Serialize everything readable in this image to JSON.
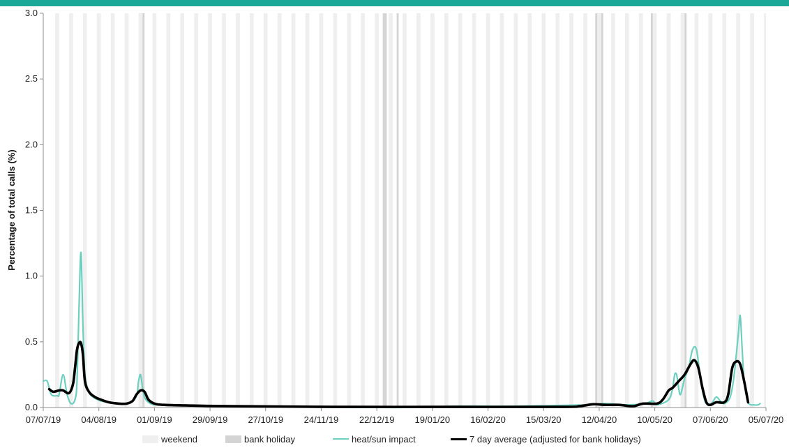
{
  "colors": {
    "top_bar": "#1aa899",
    "weekend": "#efefef",
    "bank_holiday": "#d4d4d4",
    "heat": "#6ccfbf",
    "avg": "#000000",
    "axis": "#8c8c8c"
  },
  "legend": {
    "weekend": "weekend",
    "bank_holiday": "bank holiday",
    "heat": "heat/sun impact",
    "avg": "7 day average (adjusted for bank holidays)"
  },
  "chart_data": {
    "type": "line",
    "ylabel": "Percentage of total calls (%)",
    "xlabel": "",
    "ylim": [
      0,
      3.0
    ],
    "yticks": [
      "0.0",
      "0.5",
      "1.0",
      "1.5",
      "2.0",
      "2.5",
      "3.0"
    ],
    "xlim": [
      "07/07/19",
      "05/07/20"
    ],
    "xticks": [
      "07/07/19",
      "04/08/19",
      "01/09/19",
      "29/09/19",
      "27/10/19",
      "24/11/19",
      "22/12/19",
      "19/01/20",
      "16/02/20",
      "15/03/20",
      "12/04/20",
      "10/05/20",
      "07/06/20",
      "05/07/20"
    ],
    "weekend_bands": "every Saturday and Sunday",
    "bank_holidays": [
      "26/08/19",
      "25/12/19",
      "26/12/19",
      "01/01/20",
      "10/04/20",
      "13/04/20",
      "08/05/20",
      "25/05/20"
    ],
    "series": [
      {
        "name": "heat/sun impact",
        "points": [
          [
            "07/07/19",
            0.2
          ],
          [
            "09/07/19",
            0.2
          ],
          [
            "11/07/19",
            0.1
          ],
          [
            "14/07/19",
            0.09
          ],
          [
            "15/07/19",
            0.1
          ],
          [
            "17/07/19",
            0.25
          ],
          [
            "19/07/19",
            0.1
          ],
          [
            "21/07/19",
            0.03
          ],
          [
            "23/07/19",
            0.06
          ],
          [
            "24/07/19",
            0.2
          ],
          [
            "25/07/19",
            0.75
          ],
          [
            "26/07/19",
            1.18
          ],
          [
            "27/07/19",
            0.62
          ],
          [
            "28/07/19",
            0.25
          ],
          [
            "30/07/19",
            0.12
          ],
          [
            "01/08/19",
            0.08
          ],
          [
            "05/08/19",
            0.05
          ],
          [
            "09/08/19",
            0.04
          ],
          [
            "14/08/19",
            0.03
          ],
          [
            "20/08/19",
            0.04
          ],
          [
            "23/08/19",
            0.09
          ],
          [
            "24/08/19",
            0.2
          ],
          [
            "25/08/19",
            0.25
          ],
          [
            "26/08/19",
            0.15
          ],
          [
            "27/08/19",
            0.08
          ],
          [
            "29/08/19",
            0.04
          ],
          [
            "02/09/19",
            0.02
          ],
          [
            "15/09/19",
            0.015
          ],
          [
            "01/10/19",
            0.01
          ],
          [
            "01/11/19",
            0.005
          ],
          [
            "01/01/20",
            0.0
          ],
          [
            "01/02/20",
            0.01
          ],
          [
            "01/03/20",
            0.01
          ],
          [
            "05/04/20",
            0.02
          ],
          [
            "15/04/20",
            0.03
          ],
          [
            "26/04/20",
            0.02
          ],
          [
            "05/05/20",
            0.03
          ],
          [
            "09/05/20",
            0.05
          ],
          [
            "11/05/20",
            0.02
          ],
          [
            "17/05/20",
            0.06
          ],
          [
            "19/05/20",
            0.15
          ],
          [
            "20/05/20",
            0.25
          ],
          [
            "21/05/20",
            0.25
          ],
          [
            "22/05/20",
            0.15
          ],
          [
            "23/05/20",
            0.1
          ],
          [
            "25/05/20",
            0.22
          ],
          [
            "27/05/20",
            0.3
          ],
          [
            "29/05/20",
            0.44
          ],
          [
            "31/05/20",
            0.44
          ],
          [
            "02/06/20",
            0.22
          ],
          [
            "04/06/20",
            0.06
          ],
          [
            "06/06/20",
            0.02
          ],
          [
            "08/06/20",
            0.04
          ],
          [
            "10/06/20",
            0.08
          ],
          [
            "12/06/20",
            0.05
          ],
          [
            "14/06/20",
            0.03
          ],
          [
            "17/06/20",
            0.08
          ],
          [
            "19/06/20",
            0.25
          ],
          [
            "21/06/20",
            0.55
          ],
          [
            "22/06/20",
            0.7
          ],
          [
            "23/06/20",
            0.45
          ],
          [
            "24/06/20",
            0.2
          ],
          [
            "26/06/20",
            0.04
          ],
          [
            "29/06/20",
            0.02
          ],
          [
            "01/07/20",
            0.02
          ],
          [
            "02/07/20",
            0.03
          ]
        ]
      },
      {
        "name": "7 day average (adjusted for bank holidays)",
        "points": [
          [
            "10/07/19",
            0.14
          ],
          [
            "12/07/19",
            0.12
          ],
          [
            "15/07/19",
            0.13
          ],
          [
            "17/07/19",
            0.13
          ],
          [
            "20/07/19",
            0.11
          ],
          [
            "22/07/19",
            0.18
          ],
          [
            "23/07/19",
            0.3
          ],
          [
            "24/07/19",
            0.44
          ],
          [
            "25/07/19",
            0.49
          ],
          [
            "26/07/19",
            0.49
          ],
          [
            "27/07/19",
            0.4
          ],
          [
            "28/07/19",
            0.2
          ],
          [
            "30/07/19",
            0.12
          ],
          [
            "02/08/19",
            0.08
          ],
          [
            "05/08/19",
            0.06
          ],
          [
            "09/08/19",
            0.04
          ],
          [
            "14/08/19",
            0.03
          ],
          [
            "18/08/19",
            0.03
          ],
          [
            "21/08/19",
            0.05
          ],
          [
            "23/08/19",
            0.1
          ],
          [
            "25/08/19",
            0.13
          ],
          [
            "27/08/19",
            0.12
          ],
          [
            "29/08/19",
            0.06
          ],
          [
            "01/09/19",
            0.03
          ],
          [
            "06/09/19",
            0.02
          ],
          [
            "20/09/19",
            0.015
          ],
          [
            "10/10/19",
            0.01
          ],
          [
            "01/12/19",
            0.005
          ],
          [
            "01/02/20",
            0.005
          ],
          [
            "25/03/20",
            0.005
          ],
          [
            "02/04/20",
            0.01
          ],
          [
            "09/04/20",
            0.025
          ],
          [
            "15/04/20",
            0.02
          ],
          [
            "22/04/20",
            0.02
          ],
          [
            "29/04/20",
            0.01
          ],
          [
            "04/05/20",
            0.03
          ],
          [
            "11/05/20",
            0.03
          ],
          [
            "14/05/20",
            0.06
          ],
          [
            "17/05/20",
            0.13
          ],
          [
            "19/05/20",
            0.15
          ],
          [
            "22/05/20",
            0.2
          ],
          [
            "25/05/20",
            0.25
          ],
          [
            "28/05/20",
            0.33
          ],
          [
            "30/05/20",
            0.36
          ],
          [
            "01/06/20",
            0.3
          ],
          [
            "03/06/20",
            0.15
          ],
          [
            "05/06/20",
            0.04
          ],
          [
            "07/06/20",
            0.02
          ],
          [
            "10/06/20",
            0.04
          ],
          [
            "14/06/20",
            0.04
          ],
          [
            "16/06/20",
            0.1
          ],
          [
            "18/06/20",
            0.3
          ],
          [
            "20/06/20",
            0.35
          ],
          [
            "22/06/20",
            0.33
          ],
          [
            "24/06/20",
            0.2
          ],
          [
            "26/06/20",
            0.04
          ]
        ]
      }
    ]
  }
}
